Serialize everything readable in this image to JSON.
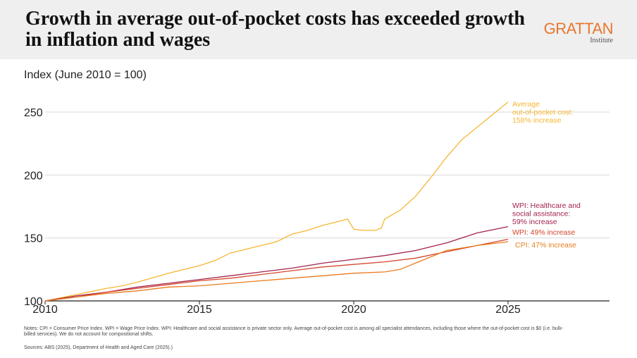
{
  "header": {
    "title": "Growth in average out-of-pocket costs has exceeded growth in inflation and wages",
    "logo_main": "GRATTAN",
    "logo_sub": "Institute"
  },
  "notes": "Notes: CPI = Consumer Price Index. WPI = Wage Price Index. WPI: Healthcare and social assistance is private sector only. Average out-of-pocket cost is among all specialist attendances, including those where the out-of-pocket cost is $0 (i.e. bulk-billed services). We do not account for compositional shifts.",
  "sources": "Sources: ABS (2025), Department of Health and Aged Care (2025).)",
  "colors": {
    "oop": "#f5b731",
    "wpi_health": "#a3224a",
    "wpi": "#d5452c",
    "cpi": "#e87c1e",
    "logo": "#e8772e",
    "grid": "#d9d9d9"
  },
  "chart_data": {
    "type": "line",
    "ylabel": "Index (June 2010 = 100)",
    "xlim": [
      2010,
      2028.5
    ],
    "ylim": [
      100,
      255
    ],
    "xticks": [
      2010,
      2015,
      2020,
      2025
    ],
    "yticks": [
      100,
      150,
      200,
      250
    ],
    "grid": "horizontal",
    "series": [
      {
        "label": "Average\nout-of-pocket cost:\n158% increase",
        "color_key": "oop",
        "points": [
          [
            2010,
            100
          ],
          [
            2011,
            105
          ],
          [
            2012,
            110
          ],
          [
            2012.5,
            112
          ],
          [
            2013,
            115
          ],
          [
            2014,
            122
          ],
          [
            2014.5,
            125
          ],
          [
            2015,
            128
          ],
          [
            2015.5,
            132
          ],
          [
            2016,
            138
          ],
          [
            2016.5,
            141
          ],
          [
            2017,
            144
          ],
          [
            2017.5,
            147
          ],
          [
            2018,
            153
          ],
          [
            2018.5,
            156
          ],
          [
            2019,
            160
          ],
          [
            2019.5,
            163
          ],
          [
            2019.8,
            165
          ],
          [
            2020,
            157
          ],
          [
            2020.3,
            156
          ],
          [
            2020.7,
            156
          ],
          [
            2020.9,
            158
          ],
          [
            2021,
            165
          ],
          [
            2021.5,
            172
          ],
          [
            2022,
            183
          ],
          [
            2022.5,
            198
          ],
          [
            2023,
            214
          ],
          [
            2023.5,
            228
          ],
          [
            2024,
            238
          ],
          [
            2024.5,
            248
          ],
          [
            2025,
            258
          ]
        ]
      },
      {
        "label": "WPI: Healthcare and\nsocial assistance:\n59% increase",
        "color_key": "wpi_health",
        "points": [
          [
            2010,
            100
          ],
          [
            2011,
            104
          ],
          [
            2012,
            107
          ],
          [
            2013,
            111
          ],
          [
            2014,
            114
          ],
          [
            2015,
            117
          ],
          [
            2016,
            120
          ],
          [
            2017,
            123
          ],
          [
            2018,
            126
          ],
          [
            2019,
            130
          ],
          [
            2020,
            133
          ],
          [
            2021,
            136
          ],
          [
            2022,
            140
          ],
          [
            2023,
            146
          ],
          [
            2024,
            154
          ],
          [
            2025,
            159
          ]
        ]
      },
      {
        "label": "WPI: 49% increase",
        "color_key": "wpi",
        "points": [
          [
            2010,
            100
          ],
          [
            2011,
            103
          ],
          [
            2012,
            107
          ],
          [
            2013,
            110
          ],
          [
            2014,
            113
          ],
          [
            2015,
            116
          ],
          [
            2016,
            118
          ],
          [
            2017,
            121
          ],
          [
            2018,
            124
          ],
          [
            2019,
            127
          ],
          [
            2020,
            129
          ],
          [
            2021,
            131
          ],
          [
            2022,
            134
          ],
          [
            2023,
            139
          ],
          [
            2024,
            144
          ],
          [
            2025,
            149
          ]
        ]
      },
      {
        "label": "CPI: 47% increase",
        "color_key": "cpi",
        "points": [
          [
            2010,
            100
          ],
          [
            2011,
            103
          ],
          [
            2012,
            106
          ],
          [
            2013,
            108
          ],
          [
            2014,
            111
          ],
          [
            2015,
            112
          ],
          [
            2016,
            114
          ],
          [
            2017,
            116
          ],
          [
            2018,
            118
          ],
          [
            2019,
            120
          ],
          [
            2020,
            122
          ],
          [
            2021,
            123
          ],
          [
            2021.5,
            125
          ],
          [
            2022,
            130
          ],
          [
            2022.5,
            135
          ],
          [
            2023,
            140
          ],
          [
            2024,
            144
          ],
          [
            2025,
            147
          ]
        ]
      }
    ]
  }
}
